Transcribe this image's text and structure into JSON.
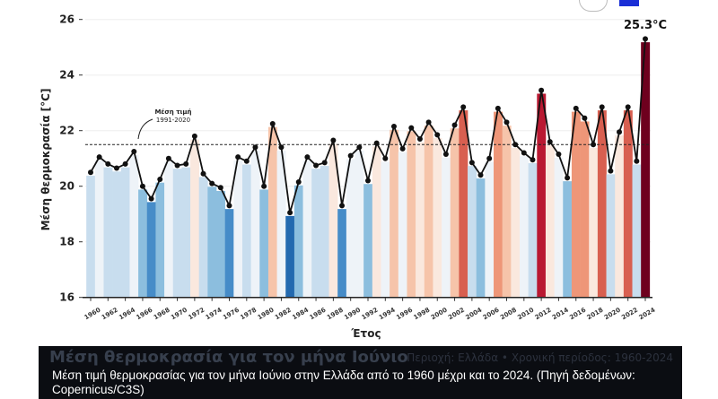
{
  "chart_data": {
    "type": "bar",
    "xlabel": "Έτος",
    "ylabel": "Μέση θερμοκρασία [°C]",
    "ylim": [
      16,
      26
    ],
    "yticks": [
      16,
      18,
      20,
      22,
      24,
      26
    ],
    "grid": true,
    "reference_line": {
      "value": 21.5,
      "label_line1": "Μέση τιμή",
      "label_line2": "1991-2020"
    },
    "highlight_label": "25.3°C",
    "x": [
      1960,
      1961,
      1962,
      1963,
      1964,
      1965,
      1966,
      1967,
      1968,
      1969,
      1970,
      1971,
      1972,
      1973,
      1974,
      1975,
      1976,
      1977,
      1978,
      1979,
      1980,
      1981,
      1982,
      1983,
      1984,
      1985,
      1986,
      1987,
      1988,
      1989,
      1990,
      1991,
      1992,
      1993,
      1994,
      1995,
      1996,
      1997,
      1998,
      1999,
      2000,
      2001,
      2002,
      2003,
      2004,
      2005,
      2006,
      2007,
      2008,
      2009,
      2010,
      2011,
      2012,
      2013,
      2014,
      2015,
      2016,
      2017,
      2018,
      2019,
      2020,
      2021,
      2022,
      2023,
      2024
    ],
    "values": [
      20.5,
      21.05,
      20.8,
      20.65,
      20.8,
      21.25,
      20.0,
      19.55,
      20.25,
      21.0,
      20.75,
      20.8,
      21.8,
      20.45,
      20.1,
      19.95,
      19.3,
      21.05,
      20.9,
      21.4,
      20.0,
      22.25,
      21.4,
      19.05,
      20.15,
      21.05,
      20.75,
      20.85,
      21.65,
      19.3,
      21.1,
      21.4,
      20.2,
      21.55,
      21.0,
      22.15,
      21.35,
      22.1,
      21.7,
      22.3,
      21.85,
      21.15,
      22.2,
      22.85,
      20.85,
      20.4,
      21.0,
      22.8,
      22.3,
      21.5,
      21.2,
      20.95,
      23.45,
      21.6,
      21.15,
      20.3,
      22.8,
      22.45,
      21.5,
      22.85,
      20.55,
      21.95,
      22.85,
      20.9,
      25.3
    ],
    "series_style": "bars colored by anomaly (blue cool, red warm) with black line and dot markers"
  },
  "caption": {
    "background_title": "Μέση θερμοκρασία για τον μήνα Ιούνιο",
    "background_subtitle": "Περιοχή: Ελλάδα • Χρονική περίοδος: 1960-2024",
    "text": "Μέση τιμή θερμοκρασίας για τον μήνα Ιούνιο στην Ελλάδα από το 1960 μέχρι και το 2024. (Πηγή δεδομένων: Copernicus/C3S)"
  }
}
